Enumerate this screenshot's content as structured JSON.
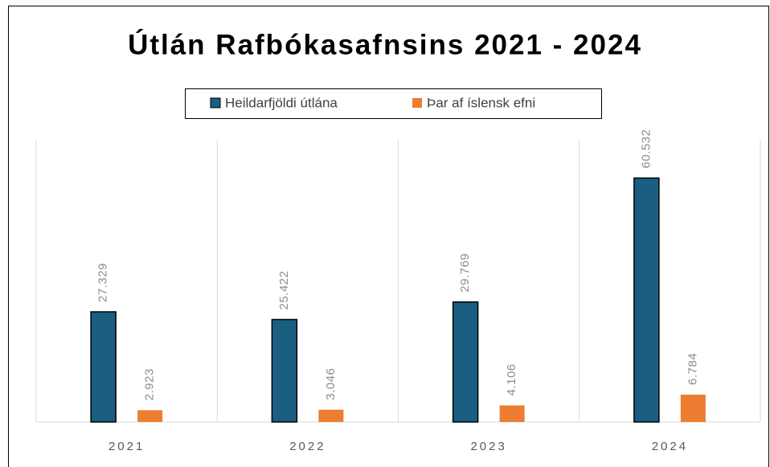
{
  "chart_data": {
    "type": "bar",
    "title": "Útlán Rafbókasafnsins 2021 - 2024",
    "categories": [
      "2021",
      "2022",
      "2023",
      "2024"
    ],
    "series": [
      {
        "name": "Heildarfjöldi útlána",
        "color": "#1a5e82",
        "values": [
          27329,
          25422,
          29769,
          60532
        ],
        "value_labels": [
          "27.329",
          "25.422",
          "29.769",
          "60.532"
        ]
      },
      {
        "name": "Þar af íslensk efni",
        "color": "#ed7d31",
        "values": [
          2923,
          3046,
          4106,
          6784
        ],
        "value_labels": [
          "2.923",
          "3.046",
          "4.106",
          "6.784"
        ]
      }
    ],
    "ylim": [
      0,
      70000
    ],
    "legend": "top"
  }
}
